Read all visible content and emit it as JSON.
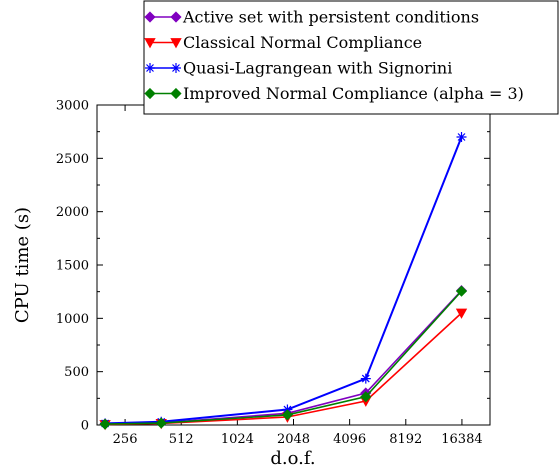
{
  "chart_data": {
    "type": "line",
    "title": "",
    "xlabel": "d.o.f.",
    "ylabel": "CPU time (s)",
    "x_scale": "log2",
    "xlim": [
      181,
      23170
    ],
    "ylim": [
      0,
      3000
    ],
    "grid": false,
    "legend_position": "top",
    "x_ticks": [
      {
        "value": 256,
        "label": "256"
      },
      {
        "value": 512,
        "label": "512"
      },
      {
        "value": 1024,
        "label": "1024"
      },
      {
        "value": 2048,
        "label": "2048"
      },
      {
        "value": 4096,
        "label": "4096"
      },
      {
        "value": 8192,
        "label": "8192"
      },
      {
        "value": 16384,
        "label": "16384"
      }
    ],
    "y_ticks": [
      {
        "value": 0,
        "label": "0"
      },
      {
        "value": 500,
        "label": "500"
      },
      {
        "value": 1000,
        "label": "1000"
      },
      {
        "value": 1500,
        "label": "1500"
      },
      {
        "value": 2000,
        "label": "2000"
      },
      {
        "value": 2500,
        "label": "2500"
      },
      {
        "value": 3000,
        "label": "3000"
      }
    ],
    "x": [
      200,
      400,
      1900,
      5000,
      16300
    ],
    "series": [
      {
        "name": "Active set with persistent conditions",
        "color": "#8000c0",
        "marker": "diamond",
        "values": [
          10,
          20,
          110,
          300,
          1260
        ]
      },
      {
        "name": "Classical Normal Compliance",
        "color": "#ff0000",
        "marker": "triangle-down",
        "values": [
          5,
          15,
          75,
          225,
          1050
        ]
      },
      {
        "name": "Quasi-Lagrangean with Signorini",
        "color": "#0000ff",
        "marker": "asterisk",
        "values": [
          15,
          30,
          145,
          435,
          2700
        ]
      },
      {
        "name": "Improved Normal Compliance (alpha = 3)",
        "color": "#008000",
        "marker": "diamond",
        "values": [
          8,
          18,
          95,
          265,
          1255
        ]
      }
    ]
  }
}
